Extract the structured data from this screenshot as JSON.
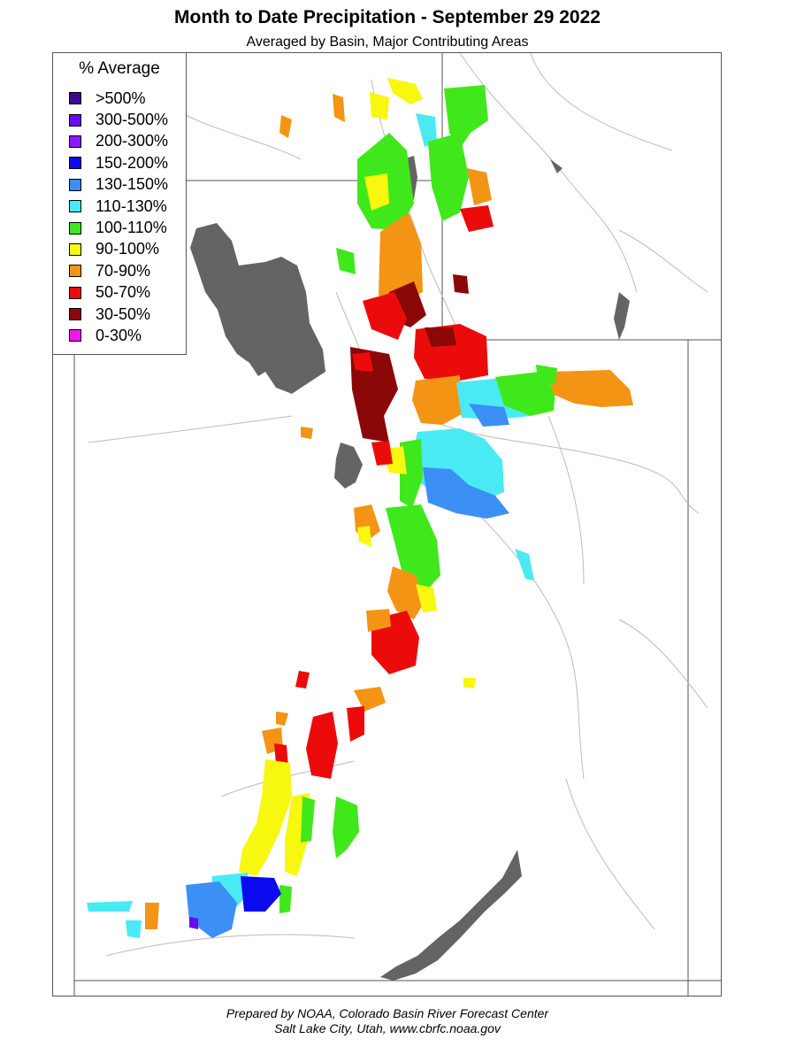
{
  "title": "Month to Date Precipitation - September 29 2022",
  "subtitle": "Averaged by Basin, Major Contributing Areas",
  "legend": {
    "title": "% Average",
    "items": [
      {
        "label": ">500%",
        "color": "#3d0a91"
      },
      {
        "label": "300-500%",
        "color": "#6a0af0"
      },
      {
        "label": "200-300%",
        "color": "#8e1bf7"
      },
      {
        "label": "150-200%",
        "color": "#0a0aef"
      },
      {
        "label": "130-150%",
        "color": "#3b8ff5"
      },
      {
        "label": "110-130%",
        "color": "#4aeaf5"
      },
      {
        "label": "100-110%",
        "color": "#3fe81a"
      },
      {
        "label": "90-100%",
        "color": "#f7f70f"
      },
      {
        "label": "70-90%",
        "color": "#f49414"
      },
      {
        "label": "50-70%",
        "color": "#ec0b0b"
      },
      {
        "label": "30-50%",
        "color": "#8c0707"
      },
      {
        "label": "0-30%",
        "color": "#f216f2"
      }
    ]
  },
  "footer": {
    "line1": "Prepared by NOAA, Colorado Basin River Forecast Center",
    "line2": "Salt Lake City, Utah, www.cbrfc.noaa.gov"
  },
  "colors": {
    "lake": "#646464",
    "border": "#555555",
    "river": "#bbbbbb"
  }
}
